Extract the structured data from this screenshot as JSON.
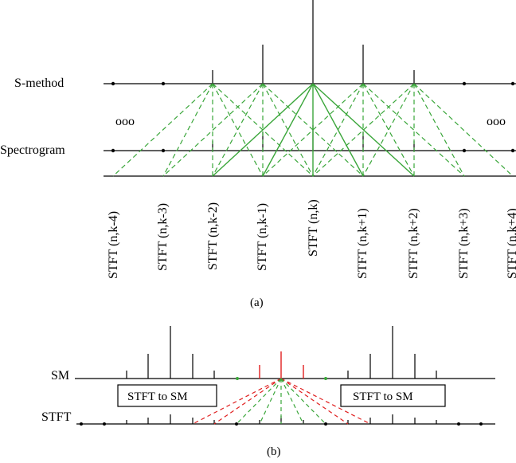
{
  "panel_a": {
    "row_top_label": "S-method",
    "row_bottom_label": "Spectrogram",
    "ellipsis_left": "ooo",
    "ellipsis_right": "ooo",
    "stft_labels": [
      "STFT (n,k-4)",
      "STFT (n,k-3)",
      "STFT (n,k-2)",
      "STFT (n,k-1)",
      "STFT (n,k)",
      "STFT (n,k+1)",
      "STFT (n,k+2)",
      "STFT (n,k+3)",
      "STFT (n,k+4)"
    ],
    "caption": "(a)"
  },
  "panel_b": {
    "row_top_label": "SM",
    "row_bottom_label": "STFT",
    "box_left": "STFT to SM",
    "box_right": "STFT to SM",
    "caption": "(b)"
  },
  "colors": {
    "line": "#000000",
    "green": "#3aa63a",
    "red": "#e02020"
  }
}
